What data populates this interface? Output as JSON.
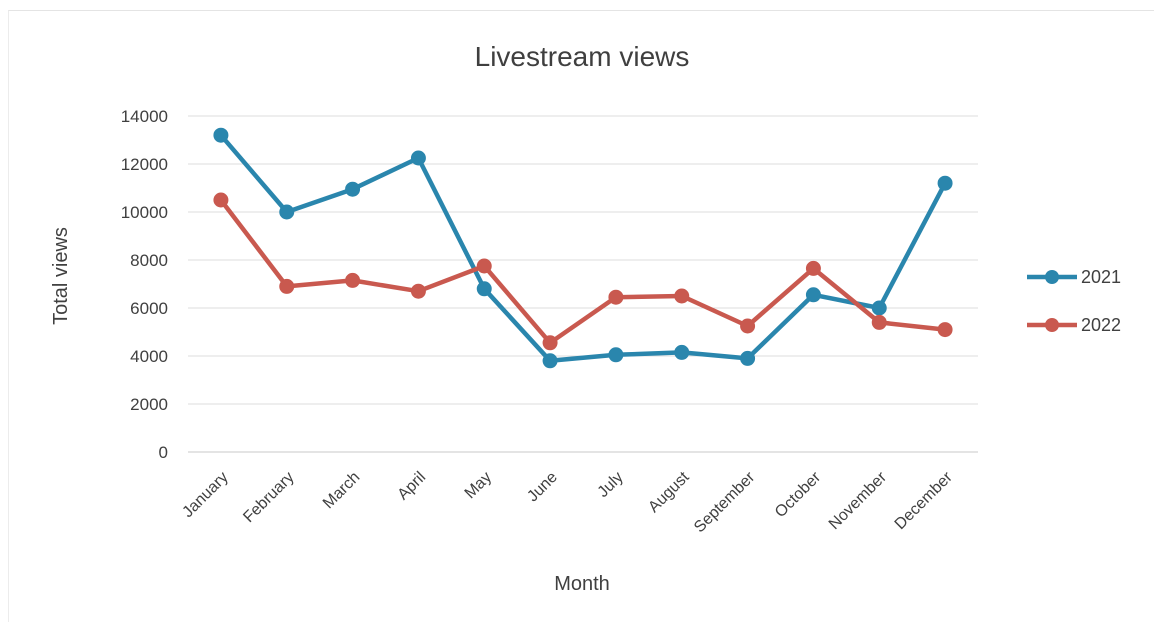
{
  "chart_data": {
    "type": "line",
    "title": "Livestream views",
    "xlabel": "Month",
    "ylabel": "Total views",
    "categories": [
      "January",
      "February",
      "March",
      "April",
      "May",
      "June",
      "July",
      "August",
      "September",
      "October",
      "November",
      "December"
    ],
    "series": [
      {
        "name": "2021",
        "color": "#2a86ad",
        "values": [
          13200,
          10000,
          10950,
          12250,
          6800,
          3800,
          4050,
          4150,
          3900,
          6550,
          6000,
          11200
        ]
      },
      {
        "name": "2022",
        "color": "#c9594f",
        "values": [
          10500,
          6900,
          7150,
          6700,
          7750,
          4550,
          6450,
          6500,
          5250,
          7650,
          5400,
          5100
        ]
      }
    ],
    "ylim": [
      0,
      14000
    ],
    "yticks": [
      "0",
      "2000",
      "4000",
      "6000",
      "8000",
      "10000",
      "12000",
      "14000"
    ],
    "grid": true,
    "legend": "right"
  }
}
